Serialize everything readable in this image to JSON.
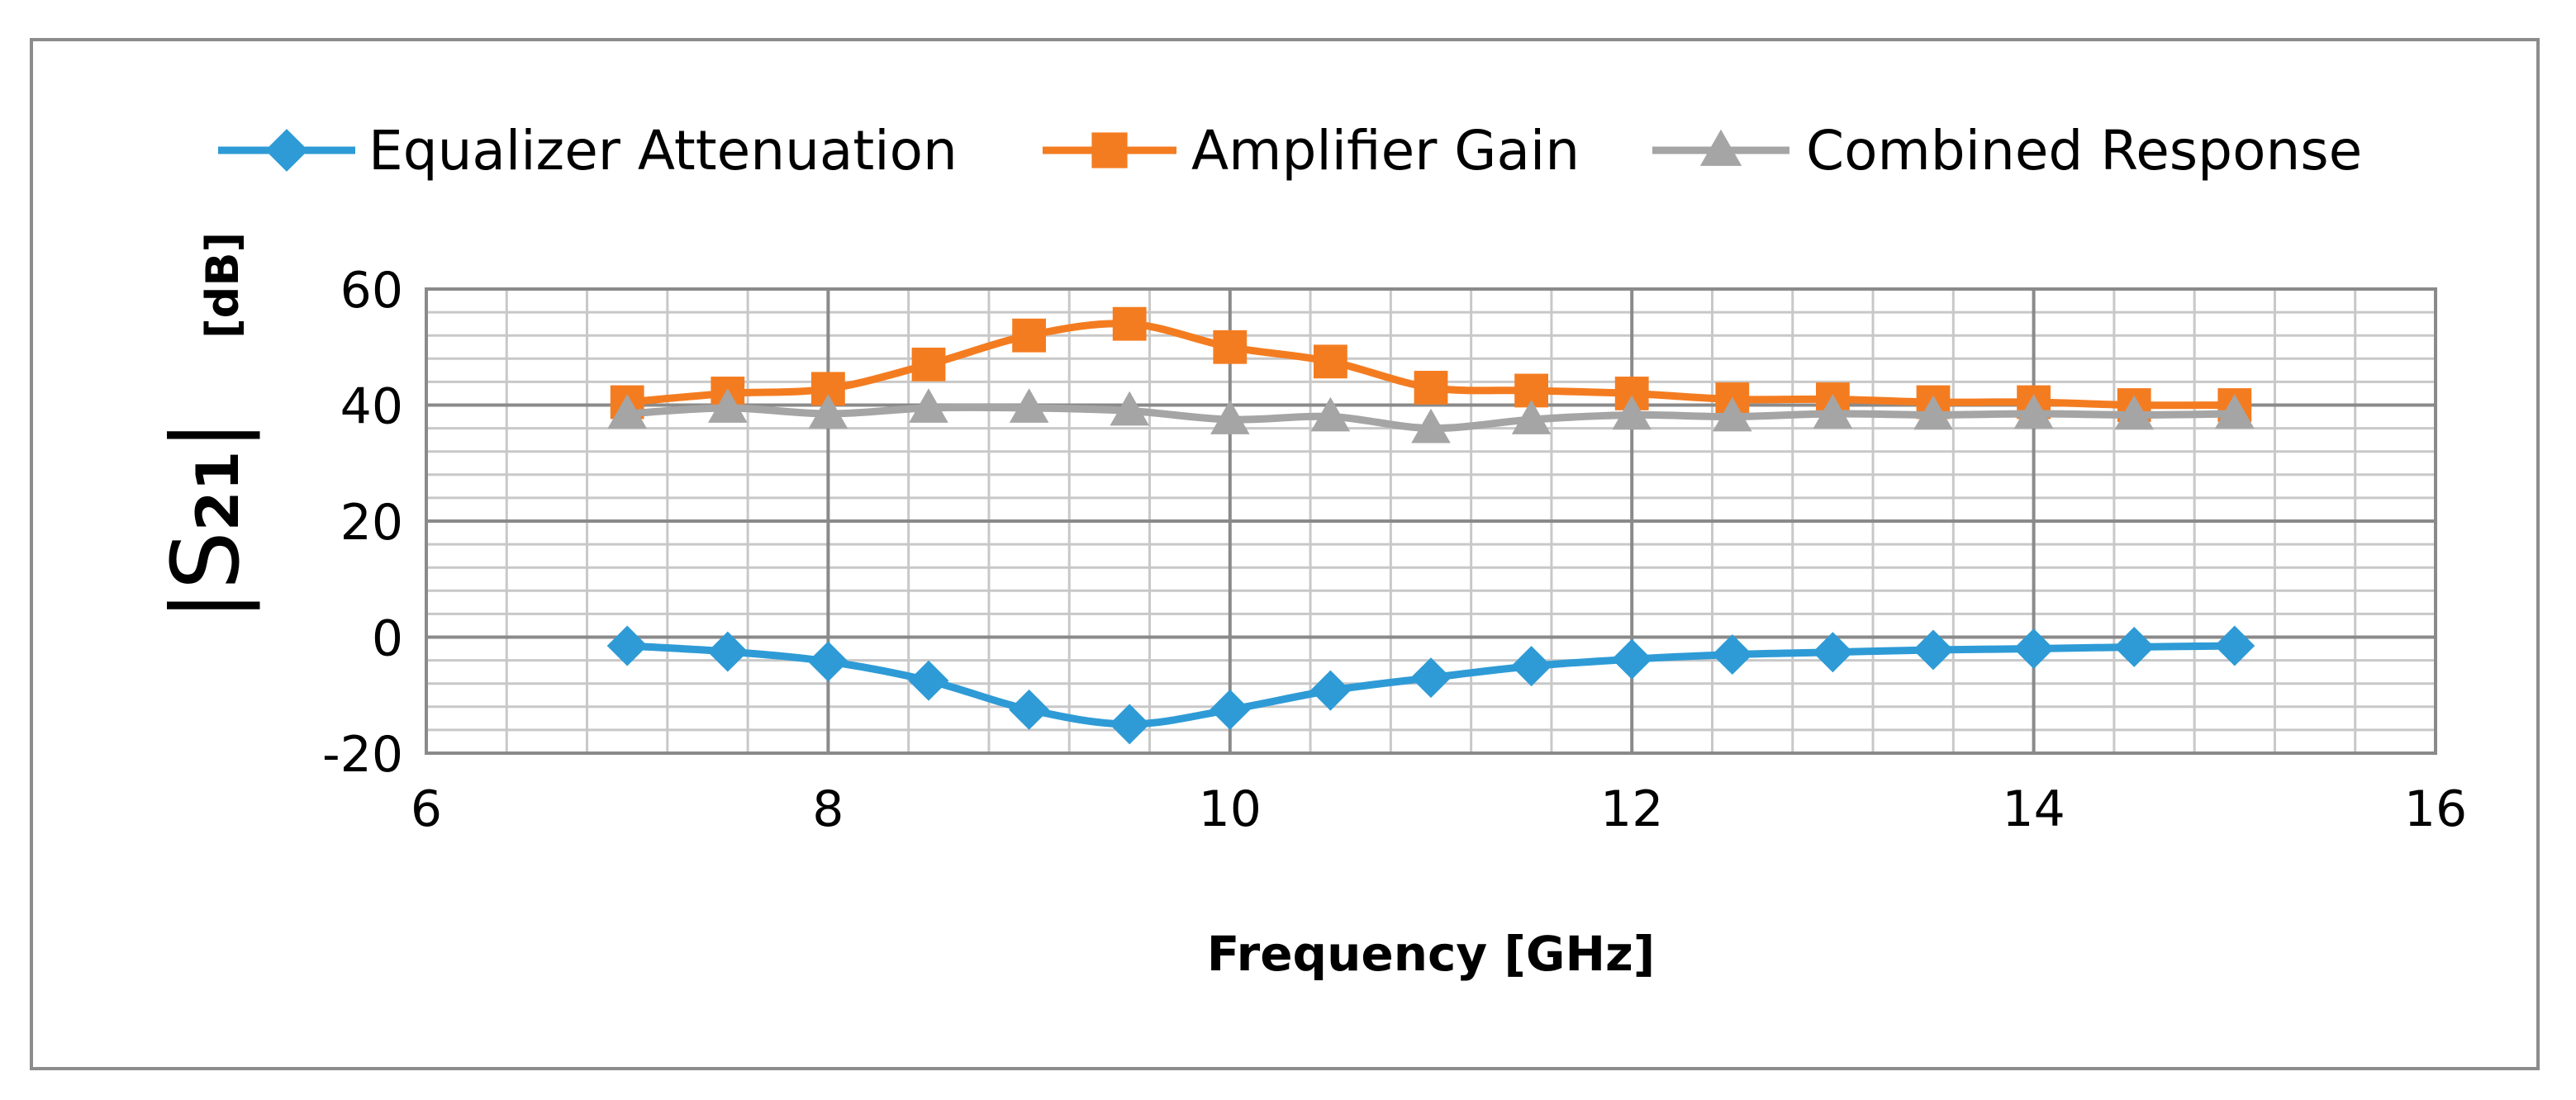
{
  "chart_data": {
    "type": "line",
    "title": "",
    "xlabel": "Frequency [GHz]",
    "ylabel": {
      "main": "S",
      "subscript": "21",
      "bars": "|",
      "unit": "[dB]"
    },
    "xlim": [
      6,
      16
    ],
    "ylim": [
      -20,
      60
    ],
    "x_ticks": [
      6,
      8,
      10,
      12,
      14,
      16
    ],
    "y_ticks": [
      -20,
      0,
      20,
      40,
      60
    ],
    "x_tick_labels": [
      "6",
      "8",
      "10",
      "12",
      "14",
      "16"
    ],
    "y_tick_labels": [
      "-20",
      "0",
      "20",
      "40",
      "60"
    ],
    "grid": true,
    "legend_position": "top",
    "x": [
      7,
      7.5,
      8,
      8.5,
      9,
      9.5,
      10,
      10.5,
      11,
      11.5,
      12,
      12.5,
      13,
      13.5,
      14,
      14.5,
      15
    ],
    "series": [
      {
        "name": "Equalizer Attenuation",
        "color": "#2e9bd6",
        "marker": "diamond",
        "values": [
          -1.5,
          -2.5,
          -4.2,
          -7.5,
          -12.5,
          -15,
          -12.5,
          -9.2,
          -7,
          -5,
          -3.8,
          -3,
          -2.6,
          -2.2,
          -2,
          -1.7,
          -1.5
        ]
      },
      {
        "name": "Amplifier Gain",
        "color": "#f47c20",
        "marker": "square",
        "values": [
          40.5,
          42,
          42.8,
          47,
          52,
          54,
          50,
          47.5,
          43,
          42.5,
          42,
          41,
          41,
          40.5,
          40.5,
          40,
          40
        ]
      },
      {
        "name": "Combined Response",
        "color": "#a5a5a5",
        "marker": "triangle",
        "values": [
          38.5,
          39.5,
          38.5,
          39.5,
          39.5,
          39,
          37.5,
          38,
          36,
          37.5,
          38.3,
          38,
          38.5,
          38.3,
          38.5,
          38.3,
          38.5
        ]
      }
    ]
  }
}
